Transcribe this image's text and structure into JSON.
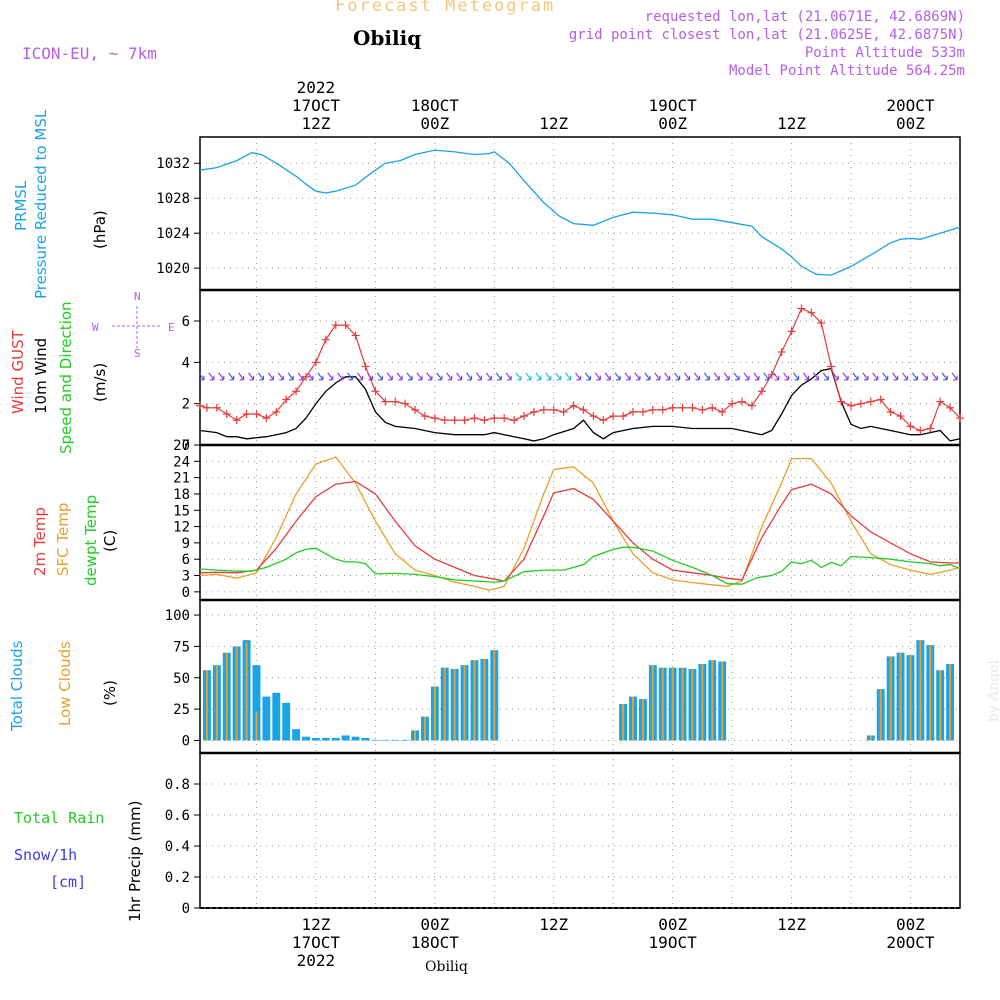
{
  "header": {
    "title": "Forecast Meteogram",
    "location": "Obiliq",
    "model": "ICON-EU, ~ 7km",
    "requested": "requested lon,lat (21.0671E, 42.6869N)",
    "gridpoint": "grid point closest lon,lat (21.0625E, 42.6875N)",
    "point_alt": "Point Altitude 533m",
    "model_alt": "Model Point Altitude 564.25m",
    "credit": "by Angel",
    "footer_location": "Obiliq"
  },
  "time_axis": {
    "top_labels": [
      {
        "hour": 12,
        "lines": [
          "2022",
          "17OCT",
          "12Z"
        ]
      },
      {
        "hour": 24,
        "lines": [
          "18OCT",
          "00Z"
        ]
      },
      {
        "hour": 36,
        "lines": [
          "12Z"
        ]
      },
      {
        "hour": 48,
        "lines": [
          "19OCT",
          "00Z"
        ]
      },
      {
        "hour": 60,
        "lines": [
          "12Z"
        ]
      },
      {
        "hour": 72,
        "lines": [
          "20OCT",
          "00Z"
        ]
      }
    ],
    "bottom_labels": [
      {
        "hour": 12,
        "lines": [
          "12Z",
          "17OCT",
          "2022"
        ]
      },
      {
        "hour": 24,
        "lines": [
          "00Z",
          "18OCT"
        ]
      },
      {
        "hour": 36,
        "lines": [
          "12Z"
        ]
      },
      {
        "hour": 48,
        "lines": [
          "00Z",
          "19OCT"
        ]
      },
      {
        "hour": 60,
        "lines": [
          "12Z"
        ]
      },
      {
        "hour": 72,
        "lines": [
          "00Z",
          "20OCT"
        ]
      }
    ]
  },
  "labels": {
    "pressure": [
      "PRMSL",
      "Pressure Reduced to MSL",
      "(hPa)"
    ],
    "wind": [
      "Wind GUST",
      "10m Wind",
      "Speed and Direction",
      "(m/s)"
    ],
    "compass": {
      "n": "N",
      "s": "S",
      "w": "W",
      "e": "E"
    },
    "temp": [
      "2m Temp",
      "SFC Temp",
      "dewpt Temp",
      "(C)"
    ],
    "clouds": [
      "Total Clouds",
      "Low Clouds",
      "(%)"
    ],
    "precip": [
      "Total Rain",
      "Snow/1h",
      "[cm]",
      "1hr Precip (mm)"
    ]
  },
  "colors": {
    "pressure": "#1aa3e8",
    "gust": "#e83c3c",
    "wind": "#000000",
    "t2m": "#e83c3c",
    "tsfc": "#e8a02a",
    "dewpt": "#22cc22",
    "total_clouds": "#1aa3e8",
    "low_clouds": "#e8a02a",
    "rain": "#22cc22",
    "snow": "#3b3be8",
    "header": "#b65ee6"
  },
  "chart_data": [
    {
      "type": "line",
      "title": "PRMSL Pressure Reduced to MSL",
      "ylabel": "(hPa)",
      "ylim": [
        1017.5,
        1035.0
      ],
      "yticks": [
        1020,
        1024,
        1028,
        1032
      ],
      "xlim": [
        0.3,
        77.0
      ],
      "series": [
        {
          "name": "PRMSL",
          "x": [
            0.3,
            2,
            4,
            5.5,
            6.5,
            8,
            10,
            11,
            12,
            13,
            14,
            16,
            17.5,
            19,
            20.5,
            22,
            24,
            26,
            28,
            29.5,
            30,
            31.5,
            33,
            35,
            36.5,
            38,
            40,
            42,
            44,
            46,
            48,
            50,
            52,
            54,
            56,
            57,
            59,
            60,
            61,
            62.5,
            64,
            66,
            68,
            70,
            71,
            72,
            73,
            75,
            77
          ],
          "y": [
            1031.2,
            1031.5,
            1032.3,
            1033.2,
            1033.0,
            1032,
            1030.5,
            1029.6,
            1028.8,
            1028.6,
            1028.8,
            1029.5,
            1030.8,
            1032,
            1032.3,
            1033,
            1033.5,
            1033.3,
            1033.0,
            1033.1,
            1033.3,
            1032,
            1030,
            1027.5,
            1026,
            1025.1,
            1024.9,
            1025.8,
            1026.4,
            1026.3,
            1026.1,
            1025.6,
            1025.6,
            1025.2,
            1024.8,
            1023.6,
            1022.2,
            1021.3,
            1020.2,
            1019.3,
            1019.2,
            1020.2,
            1021.5,
            1022.9,
            1023.3,
            1023.4,
            1023.3,
            1024.0,
            1024.7
          ]
        }
      ]
    },
    {
      "type": "line",
      "title": "Wind GUST / 10m Wind Speed and Direction",
      "ylabel": "(m/s)",
      "ylim": [
        0,
        7.5
      ],
      "yticks": [
        0,
        2,
        4,
        6
      ],
      "xlim": [
        0.3,
        77.0
      ],
      "series": [
        {
          "name": "Wind GUST",
          "x": [
            0.3,
            1,
            2,
            3,
            4,
            5,
            6,
            7,
            8,
            9,
            10,
            11,
            12,
            13,
            14,
            15,
            16,
            17,
            18,
            19,
            20,
            21,
            22,
            23,
            24,
            25,
            26,
            27,
            28,
            29,
            30,
            31,
            32,
            33,
            34,
            35,
            36,
            37,
            38,
            39,
            40,
            41,
            42,
            43,
            44,
            45,
            46,
            47,
            48,
            49,
            50,
            51,
            52,
            53,
            54,
            55,
            56,
            57,
            58,
            59,
            60,
            61,
            62,
            63,
            64,
            65,
            66,
            67,
            68,
            69,
            70,
            71,
            72,
            73,
            74,
            75,
            76,
            77
          ],
          "y": [
            1.9,
            1.8,
            1.8,
            1.5,
            1.2,
            1.5,
            1.5,
            1.3,
            1.6,
            2.2,
            2.6,
            3.3,
            4.0,
            5.1,
            5.8,
            5.8,
            5.3,
            3.8,
            2.6,
            2.1,
            2.1,
            2.0,
            1.7,
            1.4,
            1.3,
            1.2,
            1.2,
            1.2,
            1.3,
            1.2,
            1.3,
            1.3,
            1.2,
            1.4,
            1.6,
            1.7,
            1.7,
            1.6,
            1.9,
            1.7,
            1.4,
            1.2,
            1.4,
            1.4,
            1.6,
            1.6,
            1.7,
            1.7,
            1.8,
            1.8,
            1.8,
            1.7,
            1.8,
            1.6,
            2.0,
            2.1,
            1.9,
            2.6,
            3.4,
            4.5,
            5.5,
            6.6,
            6.4,
            5.9,
            3.8,
            2.1,
            1.9,
            2.0,
            2.1,
            2.2,
            1.6,
            1.4,
            0.9,
            0.7,
            0.8,
            2.1,
            1.8,
            1.3
          ]
        },
        {
          "name": "10m Wind",
          "x": [
            0.3,
            2,
            3,
            4,
            5,
            7,
            8,
            9,
            10,
            11,
            12,
            13,
            14,
            15,
            16,
            17,
            18,
            19,
            20,
            22,
            24,
            26,
            28,
            29,
            30,
            31,
            32,
            33,
            34,
            35,
            36,
            38,
            39,
            40,
            41,
            42,
            44,
            46,
            48,
            50,
            52,
            54,
            56,
            57,
            58,
            59,
            60,
            61,
            62,
            63,
            64,
            65,
            66,
            67,
            68,
            69,
            70,
            71,
            72,
            73,
            74,
            75,
            76,
            77
          ],
          "y": [
            0.7,
            0.6,
            0.4,
            0.4,
            0.3,
            0.4,
            0.5,
            0.6,
            0.8,
            1.3,
            2.0,
            2.6,
            3.0,
            3.3,
            3.3,
            2.7,
            1.6,
            1.1,
            0.9,
            0.8,
            0.6,
            0.5,
            0.5,
            0.5,
            0.6,
            0.5,
            0.4,
            0.3,
            0.2,
            0.3,
            0.5,
            0.8,
            1.2,
            0.6,
            0.3,
            0.6,
            0.8,
            0.9,
            0.9,
            0.8,
            0.8,
            0.8,
            0.6,
            0.5,
            0.7,
            1.5,
            2.4,
            2.9,
            3.2,
            3.6,
            3.7,
            2.1,
            1.0,
            0.8,
            0.9,
            0.8,
            0.7,
            0.6,
            0.5,
            0.5,
            0.6,
            0.7,
            0.2,
            0.3
          ]
        }
      ]
    },
    {
      "type": "line",
      "title": "2m Temp / SFC Temp / dewpt Temp",
      "ylabel": "(C)",
      "ylim": [
        -1.5,
        27.0
      ],
      "yticks": [
        0,
        3,
        6,
        9,
        12,
        15,
        18,
        21,
        24,
        27
      ],
      "xlim": [
        0.3,
        77.0
      ],
      "series": [
        {
          "name": "2m Temp",
          "x": [
            0.3,
            2,
            4,
            6,
            8,
            10,
            12,
            14,
            16,
            18,
            20,
            22,
            24,
            26,
            28,
            29.5,
            31,
            33,
            35,
            36,
            38,
            40,
            42,
            44,
            46,
            48,
            50,
            52,
            53.5,
            55,
            57,
            59,
            60,
            62,
            64,
            66,
            68,
            70,
            72,
            74,
            76,
            77
          ],
          "y": [
            3.5,
            3.6,
            3.5,
            4,
            8,
            13,
            17.5,
            19.8,
            20.3,
            18,
            13,
            8.5,
            6,
            4.5,
            3,
            2.5,
            2.0,
            6,
            14,
            18.2,
            19,
            17,
            13,
            9,
            6,
            4,
            3.5,
            3,
            2.5,
            2.2,
            10,
            16,
            18.8,
            19.8,
            18,
            14,
            11,
            9,
            7,
            5.5,
            5.3,
            5.3
          ]
        },
        {
          "name": "SFC Temp",
          "x": [
            0.3,
            2,
            4,
            6,
            8,
            10,
            12,
            14,
            16,
            18,
            20,
            22,
            24,
            26,
            28,
            29.5,
            31,
            33,
            35,
            36,
            38,
            40,
            42,
            44,
            46,
            48,
            50,
            52,
            53.5,
            55,
            57,
            59,
            60,
            62,
            64,
            66,
            68,
            70,
            72,
            74,
            76,
            77
          ],
          "y": [
            3.0,
            3.2,
            2.5,
            3.5,
            10,
            18,
            23.5,
            24.8,
            20,
            13,
            7,
            4,
            3,
            1.8,
            1.0,
            0.3,
            1.0,
            8,
            18,
            22.5,
            23,
            20,
            13,
            7,
            3.5,
            2.2,
            1.7,
            1.3,
            1.0,
            2.0,
            12,
            20,
            24.5,
            24.5,
            20,
            13,
            7,
            5,
            4,
            3.2,
            4,
            4.5
          ]
        },
        {
          "name": "dewpt Temp",
          "x": [
            0.3,
            2,
            4,
            5.5,
            7,
            9,
            10,
            11,
            12,
            13,
            14,
            15,
            16,
            17,
            18,
            20,
            22,
            24,
            26,
            28,
            30,
            31,
            33,
            35,
            37,
            39,
            40,
            42,
            43,
            44,
            46,
            48,
            50,
            52,
            53.5,
            55,
            56.5,
            58,
            59,
            60,
            61,
            62,
            63,
            64,
            65,
            66,
            68,
            70,
            72,
            74,
            75,
            76,
            77
          ],
          "y": [
            4.2,
            4.0,
            3.8,
            3.8,
            4.5,
            6,
            7.2,
            7.8,
            8.0,
            7.0,
            6,
            5.5,
            5.5,
            5.2,
            3.3,
            3.4,
            3.2,
            2.8,
            2.2,
            2.0,
            1.8,
            2.0,
            3.7,
            4.0,
            4.0,
            5,
            6.5,
            7.8,
            8.2,
            8.2,
            7.5,
            5.8,
            4.5,
            3,
            1.5,
            1.4,
            2.6,
            3,
            3.8,
            5.5,
            5.2,
            5.8,
            4.5,
            5.4,
            4.8,
            6.5,
            6.3,
            6,
            5.5,
            5.2,
            4.8,
            5.0,
            4.3
          ]
        }
      ]
    },
    {
      "type": "bar",
      "title": "Total Clouds / Low Clouds",
      "ylabel": "(%)",
      "ylim": [
        -10,
        112
      ],
      "yticks": [
        0,
        25,
        50,
        75,
        100
      ],
      "xlim": [
        0.3,
        77.0
      ],
      "x": [
        0,
        1,
        2,
        3,
        4,
        5,
        6,
        7,
        8,
        9,
        10,
        11,
        12,
        13,
        14,
        15,
        16,
        17,
        18,
        19,
        20,
        21,
        22,
        23,
        24,
        25,
        26,
        27,
        28,
        29,
        30,
        31,
        32,
        33,
        34,
        35,
        36,
        37,
        38,
        39,
        40,
        41,
        42,
        43,
        44,
        45,
        46,
        47,
        48,
        49,
        50,
        51,
        52,
        53,
        54,
        55,
        56,
        57,
        58,
        59,
        60,
        61,
        62,
        63,
        64,
        65,
        66,
        67,
        68,
        69,
        70,
        71,
        72,
        73,
        74,
        75,
        76,
        77
      ],
      "series": [
        {
          "name": "Total Clouds",
          "values": [
            56,
            56,
            60,
            70,
            75,
            80,
            60,
            35,
            38,
            30,
            9,
            3,
            2,
            2,
            2,
            4,
            3,
            2,
            0.5,
            0.5,
            0.5,
            0.5,
            8,
            19,
            43,
            58,
            57,
            60,
            64,
            65,
            72,
            0,
            0,
            0,
            0,
            0,
            0,
            0,
            0,
            0,
            0,
            0,
            0,
            29,
            35,
            33,
            60,
            58,
            58,
            58,
            57,
            61,
            64,
            63,
            0,
            0,
            0,
            0,
            0,
            0,
            0,
            0,
            0,
            0,
            0,
            0,
            0,
            0,
            4,
            41,
            67,
            70,
            68,
            80,
            76,
            56,
            61,
            0
          ]
        },
        {
          "name": "Low Clouds",
          "values": [
            56,
            56,
            60,
            70,
            75,
            78,
            23,
            0,
            0,
            0,
            0,
            0,
            0,
            0,
            0,
            0,
            0,
            0,
            0,
            0,
            0,
            0,
            8,
            19,
            43,
            58,
            57,
            60,
            64,
            65,
            72,
            0,
            0,
            0,
            0,
            0,
            0,
            0,
            0,
            0,
            0,
            0,
            0,
            29,
            35,
            33,
            60,
            58,
            58,
            58,
            57,
            61,
            64,
            63,
            0,
            0,
            0,
            0,
            0,
            0,
            0,
            0,
            0,
            0,
            0,
            0,
            0,
            0,
            4,
            41,
            67,
            70,
            68,
            80,
            76,
            56,
            61,
            0
          ]
        }
      ]
    },
    {
      "type": "bar",
      "title": "1hr Precip",
      "ylabel": "1hr Precip (mm)",
      "ylim": [
        0,
        1.0
      ],
      "yticks": [
        0,
        0.2,
        0.4,
        0.6,
        0.8
      ],
      "xlim": [
        0.3,
        77.0
      ],
      "series": [
        {
          "name": "Total Rain",
          "values": []
        },
        {
          "name": "Snow/1h",
          "values": []
        }
      ]
    }
  ]
}
